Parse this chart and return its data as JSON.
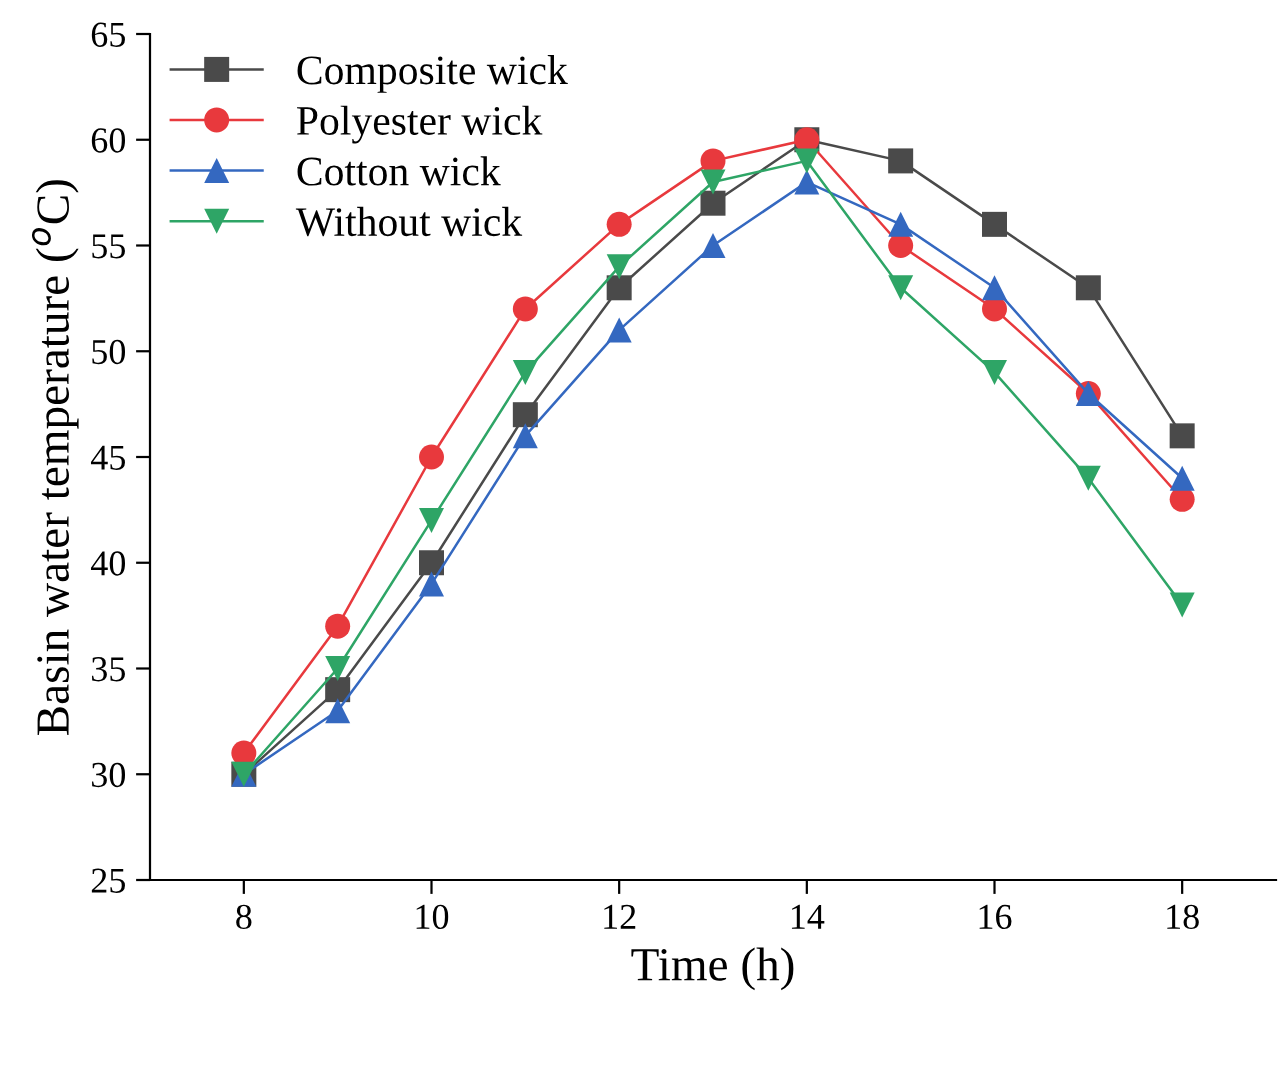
{
  "chart_data": {
    "type": "line",
    "xlabel": "Time (h)",
    "ylabel": "Basin water temperature ($^{o}$C)",
    "x": [
      8,
      9,
      10,
      11,
      12,
      13,
      14,
      15,
      16,
      17,
      18
    ],
    "xlim": [
      7,
      19
    ],
    "xticks": [
      8,
      10,
      12,
      14,
      16,
      18
    ],
    "ylim": [
      25,
      65
    ],
    "yticks": [
      25,
      30,
      35,
      40,
      45,
      50,
      55,
      60,
      65
    ],
    "grid": false,
    "legend": "top left",
    "line_style": "solid",
    "series": [
      {
        "name": "Composite wick",
        "color": "#4a4a4a",
        "marker": "square",
        "values": [
          30,
          34,
          40,
          47,
          53,
          57,
          60,
          59,
          56,
          53,
          46
        ]
      },
      {
        "name": "Polyester wick",
        "color": "#e8393d",
        "marker": "circle",
        "values": [
          31,
          37,
          45,
          52,
          56,
          59,
          60,
          55,
          52,
          48,
          43
        ]
      },
      {
        "name": "Cotton wick",
        "color": "#3468c0",
        "marker": "triangle",
        "values": [
          30,
          33,
          39,
          46,
          51,
          55,
          58,
          56,
          53,
          48,
          44
        ]
      },
      {
        "name": "Without wick",
        "color": "#2ea566",
        "marker": "triangle_down",
        "values": [
          30,
          35,
          42,
          49,
          54,
          58,
          59,
          53,
          49,
          44,
          38
        ]
      }
    ]
  }
}
